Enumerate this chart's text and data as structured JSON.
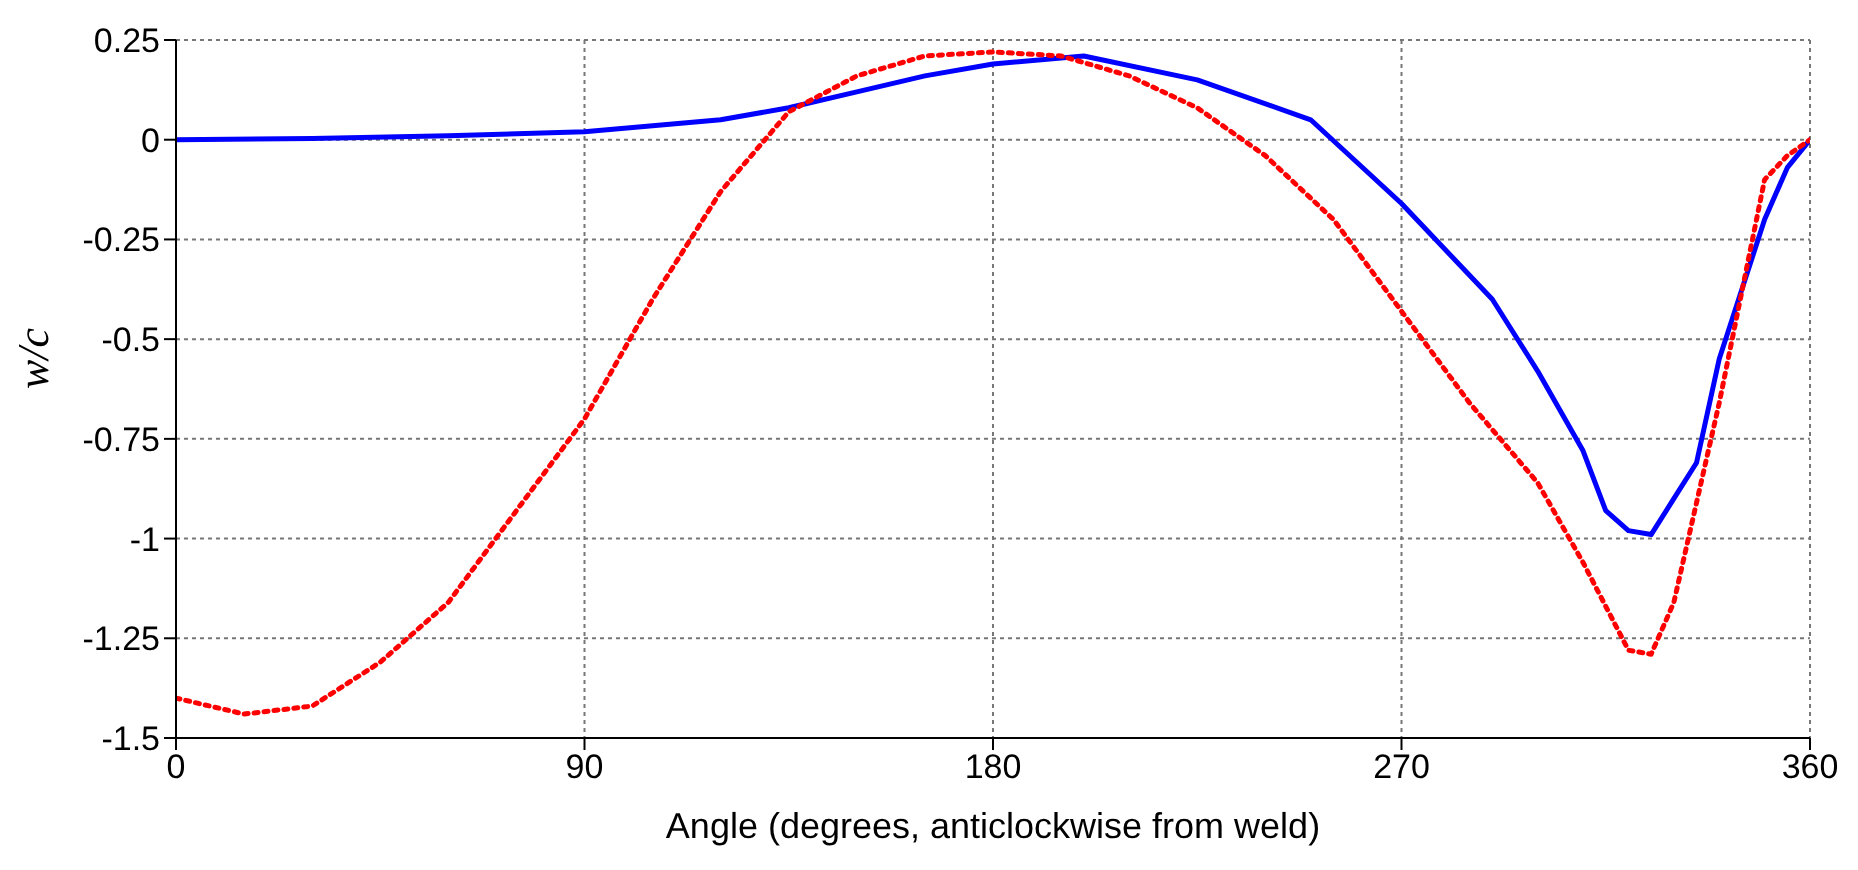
{
  "chart_data": {
    "type": "line",
    "xlabel": "Angle (degrees, anticlockwise from weld)",
    "ylabel": "w/c",
    "xlim": [
      0,
      360
    ],
    "xticks": [
      0,
      90,
      180,
      270,
      360
    ],
    "ylim": [
      -1.5,
      0.25
    ],
    "yticks": [
      0.25,
      0,
      -0.25,
      -0.5,
      -0.75,
      -1,
      -1.25,
      -1.5
    ],
    "grid": true,
    "marker": "none",
    "series": [
      {
        "color": "#0000ff",
        "line_style": "solid",
        "x": [
          0,
          30,
          60,
          90,
          120,
          135,
          150,
          165,
          180,
          200,
          225,
          250,
          270,
          290,
          300,
          310,
          315,
          320,
          325,
          330,
          335,
          340,
          350,
          355,
          360
        ],
        "values": [
          0,
          0.003,
          0.01,
          0.02,
          0.05,
          0.08,
          0.12,
          0.16,
          0.19,
          0.21,
          0.15,
          0.05,
          -0.16,
          -0.4,
          -0.58,
          -0.78,
          -0.93,
          -0.98,
          -0.99,
          -0.9,
          -0.81,
          -0.55,
          -0.2,
          -0.07,
          0
        ]
      },
      {
        "color": "#ff0000",
        "line_style": "dotted",
        "x": [
          0,
          15,
          30,
          45,
          60,
          75,
          90,
          105,
          120,
          135,
          150,
          165,
          180,
          195,
          210,
          225,
          240,
          255,
          270,
          285,
          300,
          310,
          320,
          325,
          330,
          340,
          350,
          355,
          360
        ],
        "values": [
          -1.4,
          -1.44,
          -1.42,
          -1.31,
          -1.16,
          -0.93,
          -0.7,
          -0.4,
          -0.13,
          0.07,
          0.16,
          0.21,
          0.22,
          0.21,
          0.16,
          0.08,
          -0.04,
          -0.2,
          -0.43,
          -0.66,
          -0.86,
          -1.06,
          -1.28,
          -1.29,
          -1.16,
          -0.66,
          -0.1,
          -0.04,
          0
        ]
      }
    ]
  }
}
